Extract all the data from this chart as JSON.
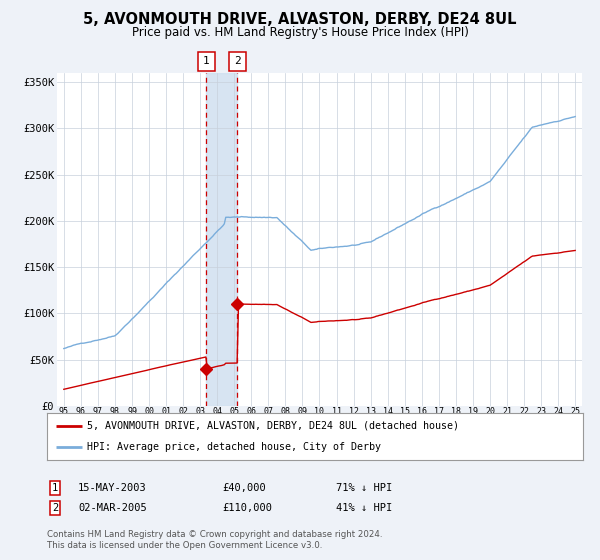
{
  "title": "5, AVONMOUTH DRIVE, ALVASTON, DERBY, DE24 8UL",
  "subtitle": "Price paid vs. HM Land Registry's House Price Index (HPI)",
  "legend_line1": "5, AVONMOUTH DRIVE, ALVASTON, DERBY, DE24 8UL (detached house)",
  "legend_line2": "HPI: Average price, detached house, City of Derby",
  "transaction1_date": "15-MAY-2003",
  "transaction1_price": 40000,
  "transaction1_label": "71% ↓ HPI",
  "transaction2_date": "02-MAR-2005",
  "transaction2_price": 110000,
  "transaction2_label": "41% ↓ HPI",
  "ylabel_ticks": [
    "£0",
    "£50K",
    "£100K",
    "£150K",
    "£200K",
    "£250K",
    "£300K",
    "£350K"
  ],
  "ylabel_vals": [
    0,
    50000,
    100000,
    150000,
    200000,
    250000,
    300000,
    350000
  ],
  "x_start_year": 1995,
  "x_end_year": 2025,
  "hpi_color": "#7aaddb",
  "price_color": "#cc0000",
  "bg_color": "#eef2f8",
  "plot_bg": "#ffffff",
  "grid_color": "#c8d0dc",
  "shade_color": "#d0e0f0",
  "t1_year": 2003.37,
  "t2_year": 2005.17,
  "footnote": "Contains HM Land Registry data © Crown copyright and database right 2024.\nThis data is licensed under the Open Government Licence v3.0."
}
